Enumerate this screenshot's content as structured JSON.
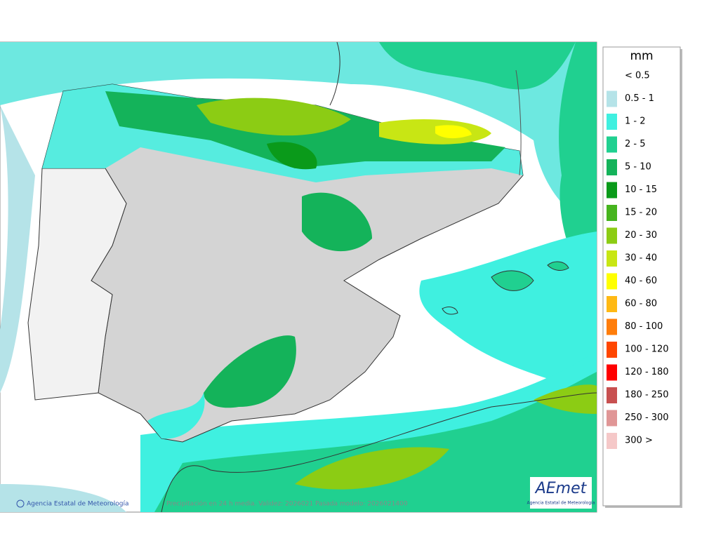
{
  "map": {
    "footer_agency": "Agencia Estatal de Meteorología",
    "footer_caption": "Precipitación en 24 h media. Validez: 2026021 Pasada modelo: 2026021400",
    "logo": "AEmet",
    "logo_subtitle": "Agencia Estatal de Meteorología"
  },
  "legend": {
    "unit": "mm",
    "items": [
      {
        "label": "< 0.5",
        "color": "#ffffff"
      },
      {
        "label": "0.5 - 1",
        "color": "#b5e3e8"
      },
      {
        "label": "1 - 2",
        "color": "#3ff0e0"
      },
      {
        "label": "2 - 5",
        "color": "#20d090"
      },
      {
        "label": "5 - 10",
        "color": "#14b35a"
      },
      {
        "label": "10 - 15",
        "color": "#0a9a1a"
      },
      {
        "label": "15 - 20",
        "color": "#46b41e"
      },
      {
        "label": "20 - 30",
        "color": "#8ccc14"
      },
      {
        "label": "30 - 40",
        "color": "#c8e614"
      },
      {
        "label": "40 - 60",
        "color": "#ffff00"
      },
      {
        "label": "60 - 80",
        "color": "#ffb914"
      },
      {
        "label": "80 - 100",
        "color": "#ff7d0a"
      },
      {
        "label": "100 - 120",
        "color": "#ff4600"
      },
      {
        "label": "120 - 180",
        "color": "#ff0000"
      },
      {
        "label": "180 - 250",
        "color": "#c85050"
      },
      {
        "label": "250 - 300",
        "color": "#e09696"
      },
      {
        "label": "300 >",
        "color": "#f5c8c8"
      }
    ]
  }
}
